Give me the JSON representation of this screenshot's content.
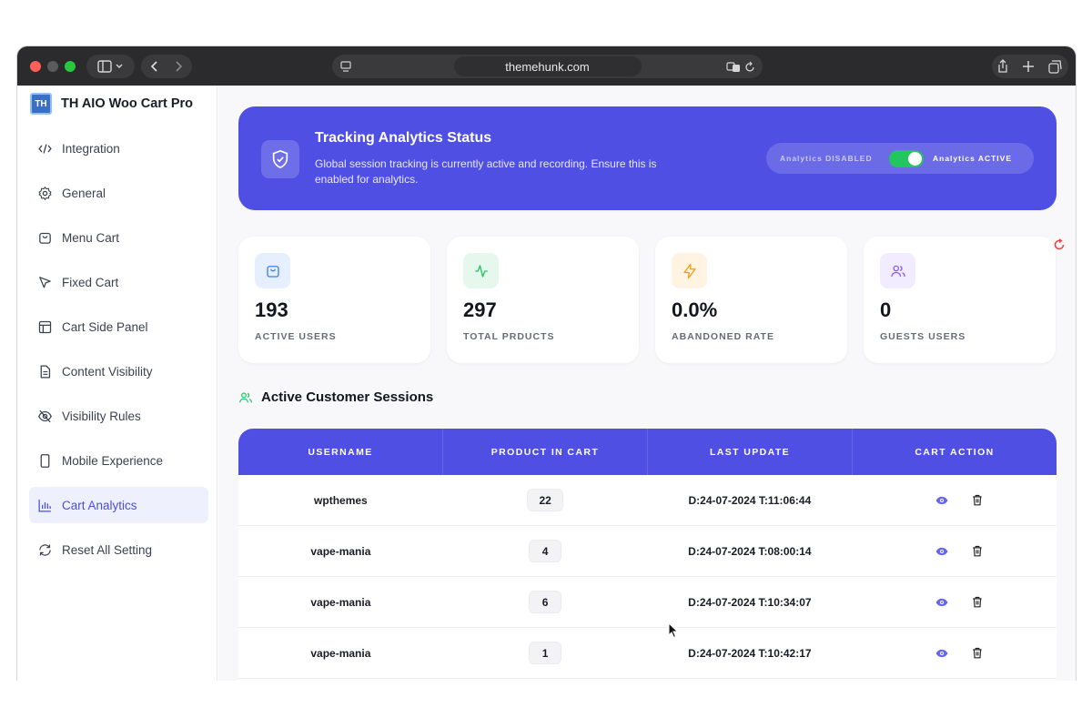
{
  "browser": {
    "url": "themehunk.com"
  },
  "app": {
    "title": "TH AIO Woo Cart Pro",
    "logo_text": "TH"
  },
  "sidebar": {
    "items": [
      {
        "label": "Integration",
        "icon": "code-icon"
      },
      {
        "label": "General",
        "icon": "gear-icon"
      },
      {
        "label": "Menu Cart",
        "icon": "bag-icon"
      },
      {
        "label": "Fixed Cart",
        "icon": "cursor-arrow-icon"
      },
      {
        "label": "Cart Side Panel",
        "icon": "layout-panel-icon"
      },
      {
        "label": "Content Visibility",
        "icon": "document-icon"
      },
      {
        "label": "Visibility Rules",
        "icon": "eye-off-icon"
      },
      {
        "label": "Mobile Experience",
        "icon": "mobile-icon"
      },
      {
        "label": "Cart Analytics",
        "icon": "bar-chart-icon",
        "active": true
      },
      {
        "label": "Reset All Setting",
        "icon": "refresh-icon"
      }
    ]
  },
  "banner": {
    "title": "Tracking Analytics Status",
    "description": "Global session tracking is currently active and recording. Ensure this is enabled for analytics.",
    "toggle_off_label": "Analytics DISABLED",
    "toggle_on_label": "Analytics ACTIVE",
    "toggle_on": true
  },
  "stats": [
    {
      "value": "193",
      "label": "ACTIVE USERS",
      "icon": "bag-icon",
      "bg": "#e6efff",
      "color": "#3b82f6"
    },
    {
      "value": "297",
      "label": "TOTAL PRDUCTS",
      "icon": "activity-icon",
      "bg": "#e6f8ee",
      "color": "#22c55e"
    },
    {
      "value": "0.0%",
      "label": "ABANDONED RATE",
      "icon": "lightning-icon",
      "bg": "#fff4e2",
      "color": "#f59e0b"
    },
    {
      "value": "0",
      "label": "GUESTS USERS",
      "icon": "users-icon",
      "bg": "#f1ecff",
      "color": "#8b5cf6"
    }
  ],
  "sessions": {
    "title": "Active Customer Sessions",
    "columns": [
      "USERNAME",
      "PRODUCT IN CART",
      "LAST UPDATE",
      "CART ACTION"
    ],
    "rows": [
      {
        "username": "wpthemes",
        "qty": "22",
        "updated": "D:24-07-2024 T:11:06:44"
      },
      {
        "username": "vape-mania",
        "qty": "4",
        "updated": "D:24-07-2024 T:08:00:14"
      },
      {
        "username": "vape-mania",
        "qty": "6",
        "updated": "D:24-07-2024 T:10:34:07"
      },
      {
        "username": "vape-mania",
        "qty": "1",
        "updated": "D:24-07-2024 T:10:42:17"
      }
    ]
  },
  "colors": {
    "accent": "#4f4fe4",
    "toggle": "#22c55e",
    "refresh": "#ef4444"
  }
}
